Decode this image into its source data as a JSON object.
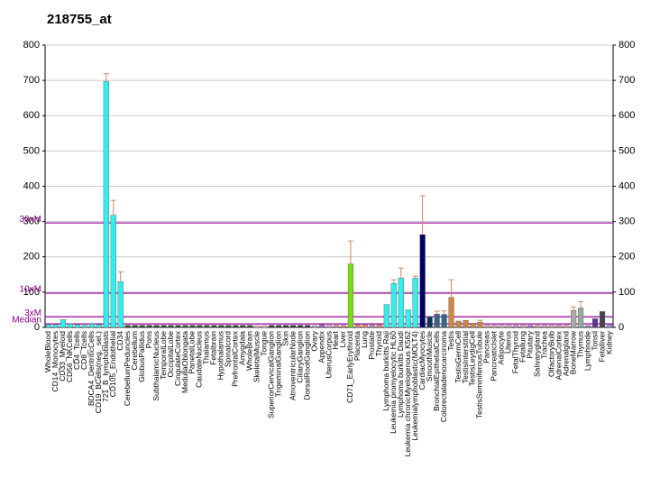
{
  "chart_data": {
    "type": "bar",
    "title": "218755_at",
    "categories": [
      "WholeBlood",
      "CD14_Monocytes",
      "CD33_Myeloid",
      "CD56_NKCells",
      "CD4_Tcells",
      "CD8_Tcells",
      "BDCA4_DentriticCells",
      "CD19_BCells(neg._sel.)",
      "721_B_lymphoblasts",
      "CD105_Endothelial",
      "CD34",
      "CerebellumPeduncles",
      "Cerebellum",
      "GlobusPallidus",
      "Pons",
      "SubthalamicNucleus",
      "TemporalLobe",
      "OccipitalLobe",
      "CingulateCortex",
      "MedullaOblongata",
      "ParietalLobe",
      "CaudateNucleus",
      "Thalamus",
      "Fetalbrain",
      "Hypothalamus",
      "Spinalcord",
      "PrefrontalCortex",
      "Amygdala",
      "WholeBrain",
      "SkeletalMuscle",
      "Tongue",
      "SuperiorCervicalGanglion",
      "TrigeminalGanglion",
      "Skin",
      "AtrioventricularNode",
      "CiliaryGanglion",
      "DorsalRootGanglion",
      "Ovary",
      "Appendix",
      "UterusCorpus",
      "Heart",
      "Liver",
      "CD71_EarlyErythroid",
      "Placenta",
      "Lung",
      "Prostate",
      "Thyroid",
      "Lymphoma burkitts Raji",
      "Leukemia promyelocytic HL60",
      "Lymphoma burkitts Daudi",
      "Leukemia chronicMyelogenous K562",
      "Leukemialymphoblastic(MOLT4)",
      "CardiacMyocytes",
      "SmoothMuscle",
      "BronchialEpithelialCells",
      "Colorectaladenocarcinoma",
      "Testis",
      "TestisGermCell",
      "TestisInterstitial",
      "TestisLeydigCell",
      "TestisSeminiferousTubule",
      "Pancreas",
      "PancreaticIslet",
      "Adipocyte",
      "Uterus",
      "FetalThyroid",
      "Fetallung",
      "Pituitary",
      "Salivarygland",
      "Trachea",
      "OlfactoryBulb",
      "AdrenalCortex",
      "Adrenalgland",
      "BoneMarrow",
      "Thymus",
      "Lymphnode",
      "Tonsil",
      "Fetalliver",
      "Kidney"
    ],
    "values": [
      8,
      8,
      22,
      10,
      8,
      6,
      10,
      8,
      697,
      318,
      130,
      6,
      6,
      6,
      6,
      6,
      6,
      6,
      6,
      6,
      6,
      6,
      6,
      6,
      6,
      6,
      6,
      6,
      6,
      5,
      5,
      6,
      6,
      6,
      6,
      6,
      6,
      5,
      8,
      6,
      6,
      6,
      180,
      8,
      8,
      8,
      8,
      65,
      125,
      140,
      50,
      140,
      263,
      30,
      38,
      37,
      85,
      18,
      20,
      12,
      15,
      6,
      6,
      6,
      6,
      6,
      6,
      6,
      6,
      6,
      6,
      6,
      6,
      48,
      55,
      5,
      25,
      45,
      8
    ],
    "errors": [
      null,
      null,
      null,
      null,
      null,
      null,
      null,
      null,
      22,
      42,
      27,
      null,
      null,
      null,
      null,
      null,
      null,
      null,
      null,
      null,
      null,
      null,
      null,
      null,
      null,
      null,
      null,
      null,
      null,
      null,
      null,
      null,
      null,
      null,
      null,
      null,
      null,
      null,
      null,
      null,
      null,
      null,
      65,
      null,
      null,
      null,
      null,
      null,
      10,
      28,
      null,
      5,
      110,
      null,
      8,
      10,
      50,
      null,
      null,
      null,
      5,
      null,
      null,
      null,
      null,
      null,
      null,
      null,
      null,
      null,
      null,
      null,
      null,
      10,
      18,
      null,
      null,
      null,
      null
    ],
    "colors": [
      "#33eeee",
      "#33eeee",
      "#33eeee",
      "#33eeee",
      "#33eeee",
      "#33eeee",
      "#33eeee",
      "#33eeee",
      "#33eeee",
      "#33eeee",
      "#33eeee",
      "#334433",
      "#334433",
      "#334433",
      "#334433",
      "#334433",
      "#334433",
      "#334433",
      "#334433",
      "#334433",
      "#334433",
      "#334433",
      "#334433",
      "#334433",
      "#334433",
      "#334433",
      "#334433",
      "#334433",
      "#334433",
      "#ffbbcc",
      "#ffbbcc",
      "#333333",
      "#333333",
      "#333333",
      "#333333",
      "#333333",
      "#333333",
      "#ccaacc",
      "#9966cc",
      "#dd99cc",
      "#cc8888",
      "#cc8888",
      "#77dd11",
      "#dd8877",
      "#dd8877",
      "#bb88cc",
      "#dd8877",
      "#33eeee",
      "#33eeee",
      "#33eeee",
      "#33eeee",
      "#33eeee",
      "#000066",
      "#113355",
      "#336688",
      "#336688",
      "#cc8844",
      "#cc8844",
      "#cc8844",
      "#cc8844",
      "#cc8844",
      "#dd99aa",
      "#dd99aa",
      "#ccaacc",
      "#dd99aa",
      "#cc88cc",
      "#dd99aa",
      "#9966cc",
      "#dd99aa",
      "#cc88cc",
      "#dd99aa",
      "#cc88aa",
      "#dd99aa",
      "#aaaaaa",
      "#99aa99",
      "#8888aa",
      "#663399",
      "#444455",
      "#9999cc"
    ],
    "error_color": "#cc8866",
    "ylim": [
      0,
      800
    ],
    "yticks": [
      0,
      100,
      200,
      300,
      400,
      500,
      600,
      700,
      800
    ],
    "grid": true,
    "reference_lines": [
      {
        "label": "Median",
        "value": 10
      },
      {
        "label": "3xM",
        "value": 30
      },
      {
        "label": "10xM",
        "value": 97
      },
      {
        "label": "30xM",
        "value": 296
      }
    ],
    "reference_color": "#990099"
  }
}
